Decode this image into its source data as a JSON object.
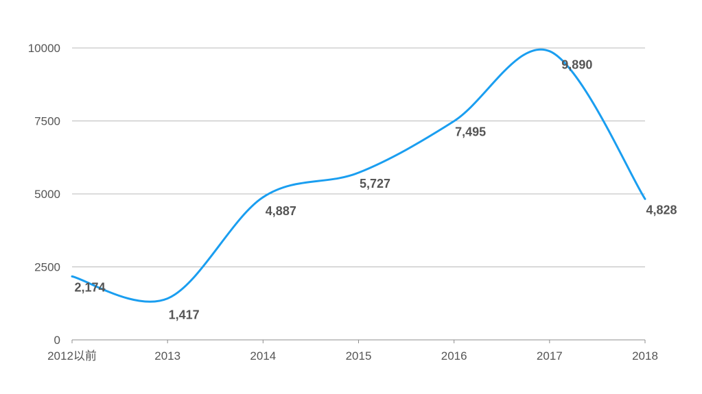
{
  "chart_data": {
    "type": "line",
    "categories": [
      "2012以前",
      "2013",
      "2014",
      "2015",
      "2016",
      "2017",
      "2018"
    ],
    "series": [
      {
        "values": [
          2174,
          1417,
          4887,
          5727,
          7495,
          9890,
          4828
        ],
        "data_labels": [
          "2,174",
          "1,417",
          "4,887",
          "5,727",
          "7,495",
          "9,890",
          "4,828"
        ],
        "color": "#1a9ef0"
      }
    ],
    "y_ticks": [
      "0",
      "2500",
      "5000",
      "7500",
      "10000"
    ],
    "y_tick_values": [
      0,
      2500,
      5000,
      7500,
      10000
    ],
    "ylim": [
      0,
      10000
    ],
    "grid": true,
    "smooth": true,
    "title": "",
    "xlabel": "",
    "ylabel": ""
  }
}
